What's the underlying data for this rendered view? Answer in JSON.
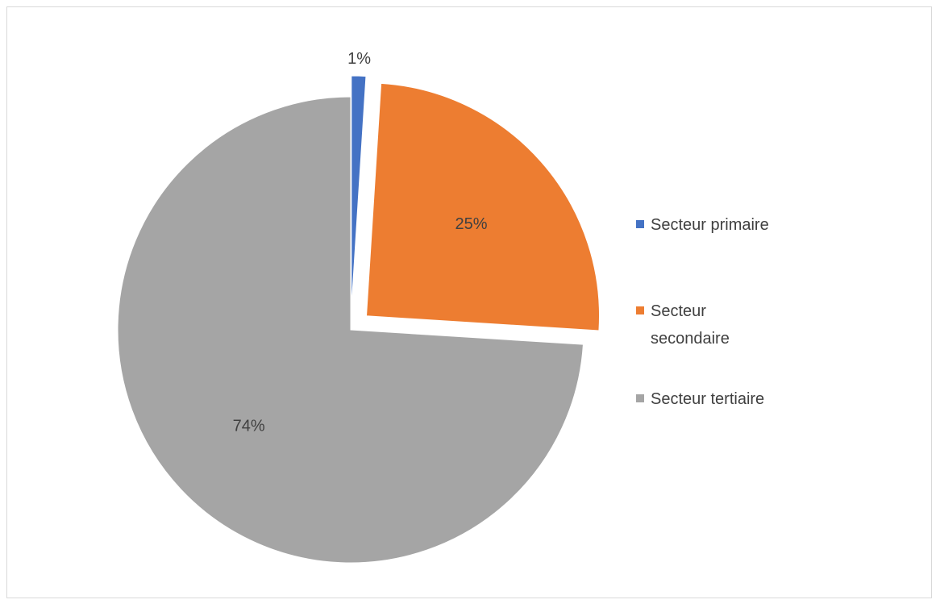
{
  "chart_data": {
    "type": "pie",
    "title": "",
    "categories": [
      "Secteur primaire",
      "Secteur secondaire",
      "Secteur tertiaire"
    ],
    "values": [
      1,
      25,
      74
    ],
    "labels": [
      "1%",
      "25%",
      "74%"
    ],
    "colors": [
      "#4472C4",
      "#ED7D31",
      "#A5A5A5"
    ],
    "exploded": true,
    "legend": {
      "position": "right",
      "entries": [
        {
          "lines": [
            "Secteur primaire"
          ]
        },
        {
          "lines": [
            "Secteur",
            "secondaire"
          ]
        },
        {
          "lines": [
            "Secteur tertiaire"
          ]
        }
      ]
    }
  }
}
